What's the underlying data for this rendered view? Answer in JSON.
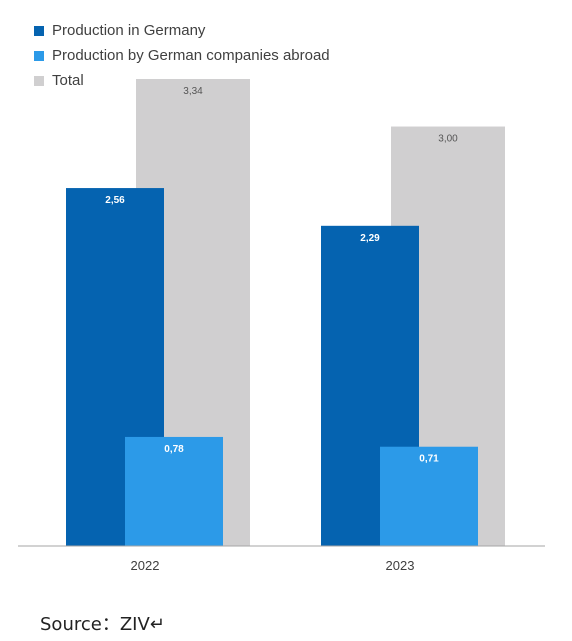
{
  "chart_data": {
    "type": "bar",
    "categories": [
      "2022",
      "2023"
    ],
    "series": [
      {
        "name": "Production in Germany",
        "values": [
          2.56,
          2.29
        ],
        "labels": [
          "2,56",
          "2,29"
        ],
        "color": "#0563b0"
      },
      {
        "name": "Production by German companies abroad",
        "values": [
          0.78,
          0.71
        ],
        "labels": [
          "0,78",
          "0,71"
        ],
        "color": "#2c9ae8"
      },
      {
        "name": "Total",
        "values": [
          3.34,
          3.0
        ],
        "labels": [
          "3,34",
          "3,00"
        ],
        "color": "#d0cfd0"
      }
    ],
    "title": "",
    "xlabel": "",
    "ylabel": "",
    "ylim": [
      0,
      3.34
    ],
    "grid": false,
    "legend_position": "top-left"
  },
  "source_text": "Source：ZIV↵"
}
